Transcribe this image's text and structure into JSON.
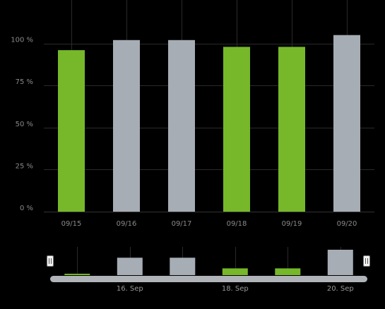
{
  "chart_data": {
    "type": "bar",
    "categories": [
      "09/15",
      "09/16",
      "09/17",
      "09/18",
      "09/19",
      "09/20"
    ],
    "values": [
      96,
      102,
      102,
      98,
      98,
      105
    ],
    "bar_colors": [
      "#76b82a",
      "#a6adb4",
      "#a6adb4",
      "#76b82a",
      "#76b82a",
      "#a6adb4"
    ],
    "y_ticks": [
      "0 %",
      "25 %",
      "50 %",
      "75 %",
      "100 %"
    ],
    "y_tick_values": [
      0,
      25,
      50,
      75,
      100
    ],
    "ylim": [
      0,
      125
    ],
    "grid": true,
    "title": "",
    "xlabel": "",
    "ylabel": ""
  },
  "navigator": {
    "labels": [
      "16. Sep",
      "18. Sep",
      "20. Sep"
    ],
    "label_positions": [
      1,
      3,
      5
    ],
    "handle_glyph": "⦀"
  },
  "colors": {
    "background": "#000000",
    "gridline": "#2a2a2a",
    "axis_line": "#333333",
    "tick_text": "#8a8a8a",
    "green": "#76b82a",
    "gray": "#a6adb4",
    "scrollbar": "#b0b4b8",
    "handle_fill": "#f2f2f2",
    "handle_stroke": "#777777"
  }
}
